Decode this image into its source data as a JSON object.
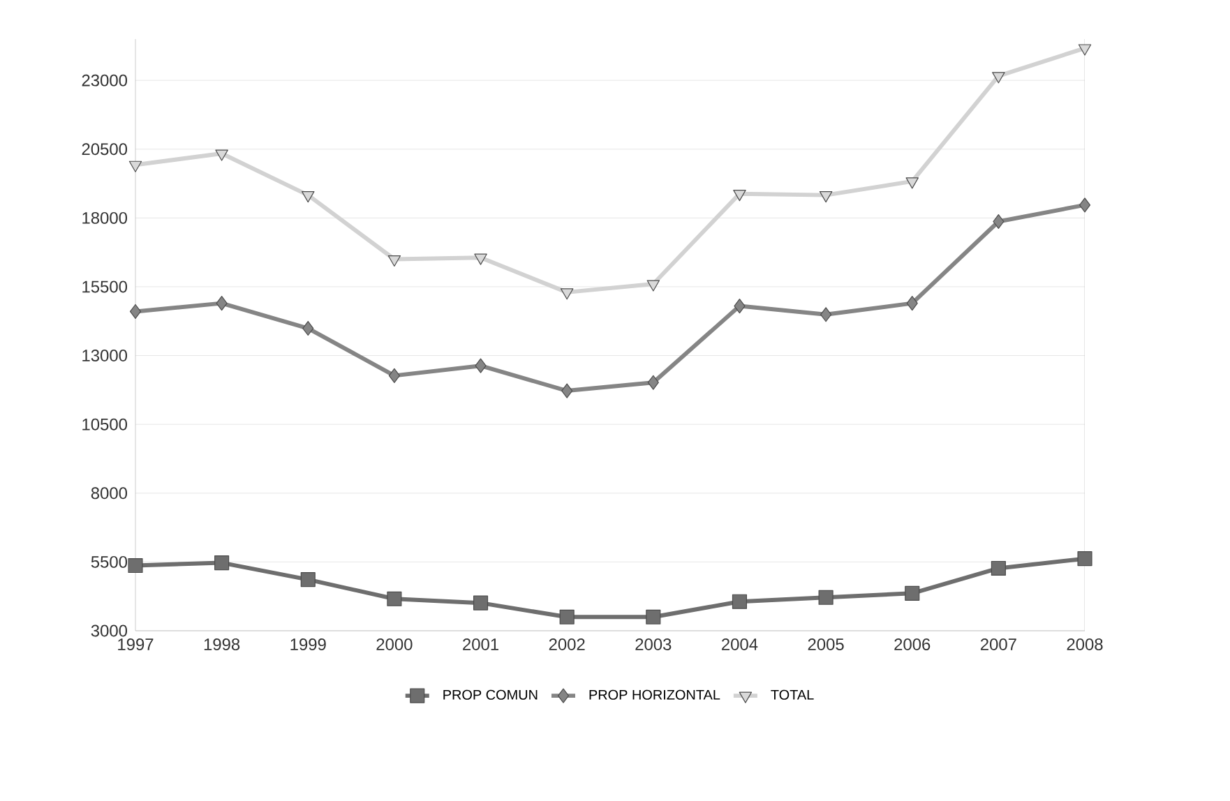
{
  "chart_data": {
    "type": "line",
    "categories": [
      "1997",
      "1998",
      "1999",
      "2000",
      "2001",
      "2002",
      "2003",
      "2004",
      "2005",
      "2006",
      "2007",
      "2008"
    ],
    "series": [
      {
        "name": "PROP COMUN",
        "color": "#6e6e6e",
        "marker": "square",
        "values": [
          5370,
          5470,
          4860,
          4160,
          4010,
          3500,
          3500,
          4060,
          4210,
          4360,
          5270,
          5620
        ]
      },
      {
        "name": "PROP HORIZONTAL",
        "color": "#858585",
        "marker": "diamond",
        "values": [
          14600,
          14900,
          13990,
          12270,
          12630,
          11720,
          12020,
          14800,
          14490,
          14900,
          17870,
          18470
        ]
      },
      {
        "name": "TOTAL",
        "color": "#d2d2d2",
        "marker": "triangle",
        "values": [
          19930,
          20340,
          18830,
          16500,
          16560,
          15300,
          15600,
          18880,
          18830,
          19330,
          23160,
          24170
        ]
      }
    ],
    "ylim": [
      3000,
      24500
    ],
    "yticks": [
      3000,
      5500,
      8000,
      10500,
      13000,
      15500,
      18000,
      20500,
      23000
    ],
    "grid": "y",
    "legend": "bottom",
    "line_style": "solid"
  }
}
